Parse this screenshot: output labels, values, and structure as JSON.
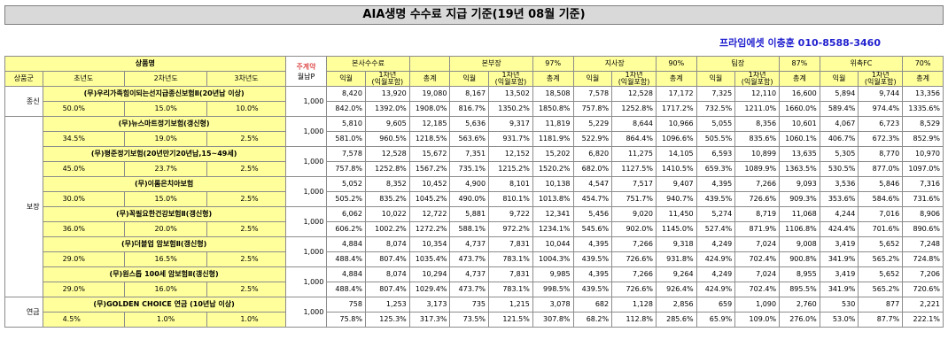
{
  "title": "AIA생명 수수료 지급 기준(19년 08월 기준)",
  "contact": "프라임에셋 이충훈 010-8588-3460",
  "header": {
    "product": "상품명",
    "premium_line1": "주계약",
    "premium_line2": "월납P",
    "group": "상품군",
    "y1": "초년도",
    "y2": "2차년도",
    "y3": "3차년도",
    "sections": [
      {
        "name": "본사수수료",
        "pct": ""
      },
      {
        "name": "본부장",
        "pct": "97%"
      },
      {
        "name": "지사장",
        "pct": "90%"
      },
      {
        "name": "팀장",
        "pct": "87%"
      },
      {
        "name": "위촉FC",
        "pct": "70%"
      }
    ],
    "sub": [
      "익월",
      "1차년\n(익월포함)",
      "총계"
    ]
  },
  "groups": [
    {
      "name": "종신",
      "rows": [
        0
      ]
    },
    {
      "name": "보장",
      "rows": [
        1,
        2,
        3,
        4,
        5,
        6
      ]
    },
    {
      "name": "연금",
      "rows": [
        7
      ]
    }
  ],
  "products": [
    {
      "name": "(무)우리가족힘이되는선지급종신보험Ⅱ(20년납 이상)",
      "premium": "1,000",
      "rates": [
        "50.0%",
        "15.0%",
        "10.0%"
      ],
      "amounts": [
        "8,420",
        "13,920",
        "19,080",
        "8,167",
        "13,502",
        "18,508",
        "7,578",
        "12,528",
        "17,172",
        "7,325",
        "12,110",
        "16,600",
        "5,894",
        "9,744",
        "13,356"
      ],
      "pcts": [
        "842.0%",
        "1392.0%",
        "1908.0%",
        "816.7%",
        "1350.2%",
        "1850.8%",
        "757.8%",
        "1252.8%",
        "1717.2%",
        "732.5%",
        "1211.0%",
        "1660.0%",
        "589.4%",
        "974.4%",
        "1335.6%"
      ]
    },
    {
      "name": "(무)뉴스마트정기보험(갱신형)",
      "premium": "1,000",
      "rates": [
        "34.5%",
        "19.0%",
        "2.5%"
      ],
      "amounts": [
        "5,810",
        "9,605",
        "12,185",
        "5,636",
        "9,317",
        "11,819",
        "5,229",
        "8,644",
        "10,966",
        "5,055",
        "8,356",
        "10,601",
        "4,067",
        "6,723",
        "8,529"
      ],
      "pcts": [
        "581.0%",
        "960.5%",
        "1218.5%",
        "563.6%",
        "931.7%",
        "1181.9%",
        "522.9%",
        "864.4%",
        "1096.6%",
        "505.5%",
        "835.6%",
        "1060.1%",
        "406.7%",
        "672.3%",
        "852.9%"
      ]
    },
    {
      "name": "(무)평준정기보험(20년만기20년납,15~49세)",
      "premium": "1,000",
      "rates": [
        "45.0%",
        "23.7%",
        "2.5%"
      ],
      "amounts": [
        "7,578",
        "12,528",
        "15,672",
        "7,351",
        "12,152",
        "15,202",
        "6,820",
        "11,275",
        "14,105",
        "6,593",
        "10,899",
        "13,635",
        "5,305",
        "8,770",
        "10,970"
      ],
      "pcts": [
        "757.8%",
        "1252.8%",
        "1567.2%",
        "735.1%",
        "1215.2%",
        "1520.2%",
        "682.0%",
        "1127.5%",
        "1410.5%",
        "659.3%",
        "1089.9%",
        "1363.5%",
        "530.5%",
        "877.0%",
        "1097.0%"
      ]
    },
    {
      "name": "(무)이롬은치아보험",
      "premium": "1,000",
      "rates": [
        "30.0%",
        "15.0%",
        "2.5%"
      ],
      "amounts": [
        "5,052",
        "8,352",
        "10,452",
        "4,900",
        "8,101",
        "10,138",
        "4,547",
        "7,517",
        "9,407",
        "4,395",
        "7,266",
        "9,093",
        "3,536",
        "5,846",
        "7,316"
      ],
      "pcts": [
        "505.2%",
        "835.2%",
        "1045.2%",
        "490.0%",
        "810.1%",
        "1013.8%",
        "454.7%",
        "751.7%",
        "940.7%",
        "439.5%",
        "726.6%",
        "909.3%",
        "353.6%",
        "584.6%",
        "731.6%"
      ]
    },
    {
      "name": "(무)꼭필요한건강보험Ⅱ(갱신형)",
      "premium": "1,000",
      "rates": [
        "36.0%",
        "20.0%",
        "2.5%"
      ],
      "amounts": [
        "6,062",
        "10,022",
        "12,722",
        "5,881",
        "9,722",
        "12,341",
        "5,456",
        "9,020",
        "11,450",
        "5,274",
        "8,719",
        "11,068",
        "4,244",
        "7,016",
        "8,906"
      ],
      "pcts": [
        "606.2%",
        "1002.2%",
        "1272.2%",
        "588.1%",
        "972.2%",
        "1234.1%",
        "545.6%",
        "902.0%",
        "1145.0%",
        "527.4%",
        "871.9%",
        "1106.8%",
        "424.4%",
        "701.6%",
        "890.6%"
      ]
    },
    {
      "name": "(무)더블업 암보험Ⅱ(갱신형)",
      "premium": "1,000",
      "rates": [
        "29.0%",
        "16.5%",
        "2.5%"
      ],
      "amounts": [
        "4,884",
        "8,074",
        "10,354",
        "4,737",
        "7,831",
        "10,044",
        "4,395",
        "7,266",
        "9,318",
        "4,249",
        "7,024",
        "9,008",
        "3,419",
        "5,652",
        "7,248"
      ],
      "pcts": [
        "488.4%",
        "807.4%",
        "1035.4%",
        "473.7%",
        "783.1%",
        "1004.3%",
        "439.5%",
        "726.6%",
        "931.8%",
        "424.9%",
        "702.4%",
        "900.8%",
        "341.9%",
        "565.2%",
        "724.8%"
      ]
    },
    {
      "name": "(무)원스톱 100세 암보험Ⅱ(갱신형)",
      "premium": "1,000",
      "rates": [
        "29.0%",
        "16.0%",
        "2.5%"
      ],
      "amounts": [
        "4,884",
        "8,074",
        "10,294",
        "4,737",
        "7,831",
        "9,985",
        "4,395",
        "7,266",
        "9,264",
        "4,249",
        "7,024",
        "8,955",
        "3,419",
        "5,652",
        "7,206"
      ],
      "pcts": [
        "488.4%",
        "807.4%",
        "1029.4%",
        "473.7%",
        "783.1%",
        "998.5%",
        "439.5%",
        "726.6%",
        "926.4%",
        "424.9%",
        "702.4%",
        "895.5%",
        "341.9%",
        "565.2%",
        "720.6%"
      ]
    },
    {
      "name": "(무)GOLDEN CHOICE 연금 (10년납 이상)",
      "premium": "1,000",
      "rates": [
        "4.5%",
        "1.0%",
        "1.0%"
      ],
      "amounts": [
        "758",
        "1,253",
        "3,173",
        "735",
        "1,215",
        "3,078",
        "682",
        "1,128",
        "2,856",
        "659",
        "1,090",
        "2,760",
        "530",
        "877",
        "2,221"
      ],
      "pcts": [
        "75.8%",
        "125.3%",
        "317.3%",
        "73.5%",
        "121.5%",
        "307.8%",
        "68.2%",
        "112.8%",
        "285.6%",
        "65.9%",
        "109.0%",
        "276.0%",
        "53.0%",
        "87.7%",
        "222.1%"
      ]
    }
  ]
}
